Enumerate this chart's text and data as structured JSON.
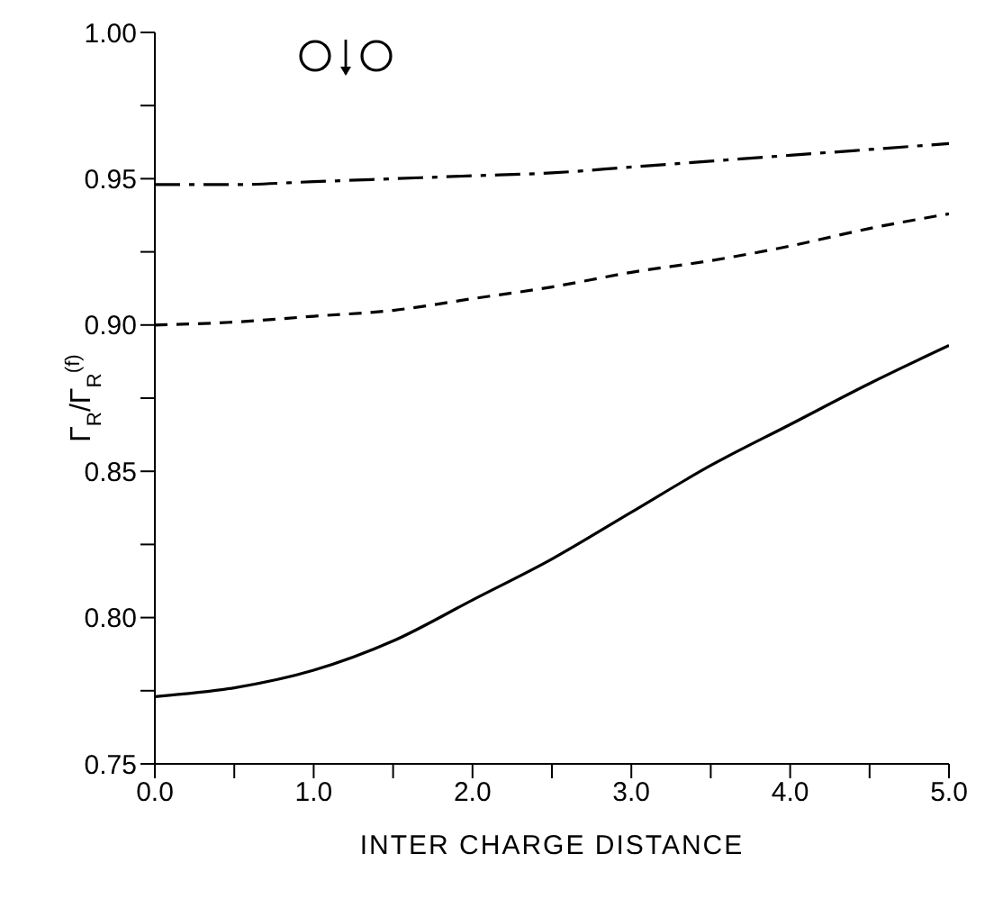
{
  "chart_data": {
    "type": "line",
    "xlabel": "INTER CHARGE DISTANCE",
    "ylabel": "Γ$_{R}$/Γ$_{R}$$^{(f)}$",
    "x": [
      0,
      0.5,
      1,
      1.5,
      2,
      2.5,
      3,
      3.5,
      4,
      4.5,
      5
    ],
    "series": [
      {
        "color": "#000000",
        "line_style": "dashdot",
        "values": [
          0.948,
          0.948,
          0.949,
          0.95,
          0.951,
          0.952,
          0.954,
          0.956,
          0.958,
          0.96,
          0.962
        ]
      },
      {
        "color": "#000000",
        "line_style": "dashed",
        "values": [
          0.9,
          0.901,
          0.903,
          0.905,
          0.909,
          0.913,
          0.918,
          0.922,
          0.927,
          0.933,
          0.938
        ]
      },
      {
        "color": "#000000",
        "line_style": "solid",
        "values": [
          0.773,
          0.776,
          0.782,
          0.792,
          0.806,
          0.82,
          0.836,
          0.852,
          0.866,
          0.88,
          0.893
        ]
      }
    ],
    "xlim": [
      0,
      5
    ],
    "xticks": [
      {
        "value": 0,
        "label": "0.0"
      },
      {
        "value": 0.5,
        "label": null
      },
      {
        "value": 1,
        "label": "1.0"
      },
      {
        "value": 1.5,
        "label": null
      },
      {
        "value": 2,
        "label": "2.0"
      },
      {
        "value": 2.5,
        "label": null
      },
      {
        "value": 3,
        "label": "3.0"
      },
      {
        "value": 3.5,
        "label": null
      },
      {
        "value": 4,
        "label": "4.0"
      },
      {
        "value": 4.5,
        "label": null
      },
      {
        "value": 5,
        "label": "5.0"
      }
    ],
    "ylim": [
      0.75,
      1
    ],
    "yticks": [
      {
        "value": 0.75,
        "label": "0.75"
      },
      {
        "value": 0.775,
        "label": null
      },
      {
        "value": 0.8,
        "label": "0.80"
      },
      {
        "value": 0.825,
        "label": null
      },
      {
        "value": 0.85,
        "label": "0.85"
      },
      {
        "value": 0.875,
        "label": null
      },
      {
        "value": 0.9,
        "label": "0.90"
      },
      {
        "value": 0.925,
        "label": null
      },
      {
        "value": 0.95,
        "label": "0.95"
      },
      {
        "value": 0.975,
        "label": null
      },
      {
        "value": 1,
        "label": "1.00"
      }
    ],
    "grid": false,
    "legend": false,
    "marker": "none"
  }
}
